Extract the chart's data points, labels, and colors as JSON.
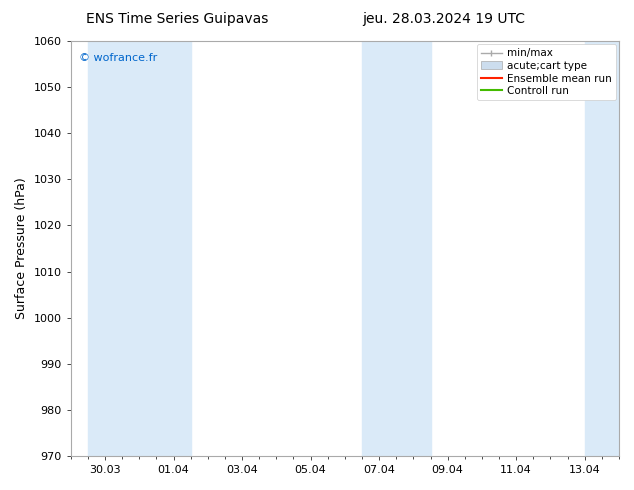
{
  "title_left": "ENS Time Series Guipavas",
  "title_right": "jeu. 28.03.2024 19 UTC",
  "ylabel": "Surface Pressure (hPa)",
  "ylim": [
    970,
    1060
  ],
  "yticks": [
    970,
    980,
    990,
    1000,
    1010,
    1020,
    1030,
    1040,
    1050,
    1060
  ],
  "xtick_labels": [
    "30.03",
    "01.04",
    "03.04",
    "05.04",
    "07.04",
    "09.04",
    "11.04",
    "13.04"
  ],
  "xtick_positions": [
    1.0,
    3.0,
    5.0,
    7.0,
    9.0,
    11.0,
    13.0,
    15.0
  ],
  "xlim": [
    0,
    16
  ],
  "watermark": "© wofrance.fr",
  "watermark_color": "#0066cc",
  "shaded_bands": [
    {
      "x_start": 0.5,
      "x_end": 2.0
    },
    {
      "x_start": 2.0,
      "x_end": 3.5
    },
    {
      "x_start": 8.5,
      "x_end": 9.5
    },
    {
      "x_start": 9.5,
      "x_end": 10.5
    },
    {
      "x_start": 15.0,
      "x_end": 16.0
    }
  ],
  "band_color": "#daeaf8",
  "background_color": "#ffffff",
  "spine_color": "#aaaaaa",
  "title_fontsize": 10,
  "tick_fontsize": 8,
  "ylabel_fontsize": 9,
  "watermark_fontsize": 8,
  "legend_fontsize": 7.5
}
